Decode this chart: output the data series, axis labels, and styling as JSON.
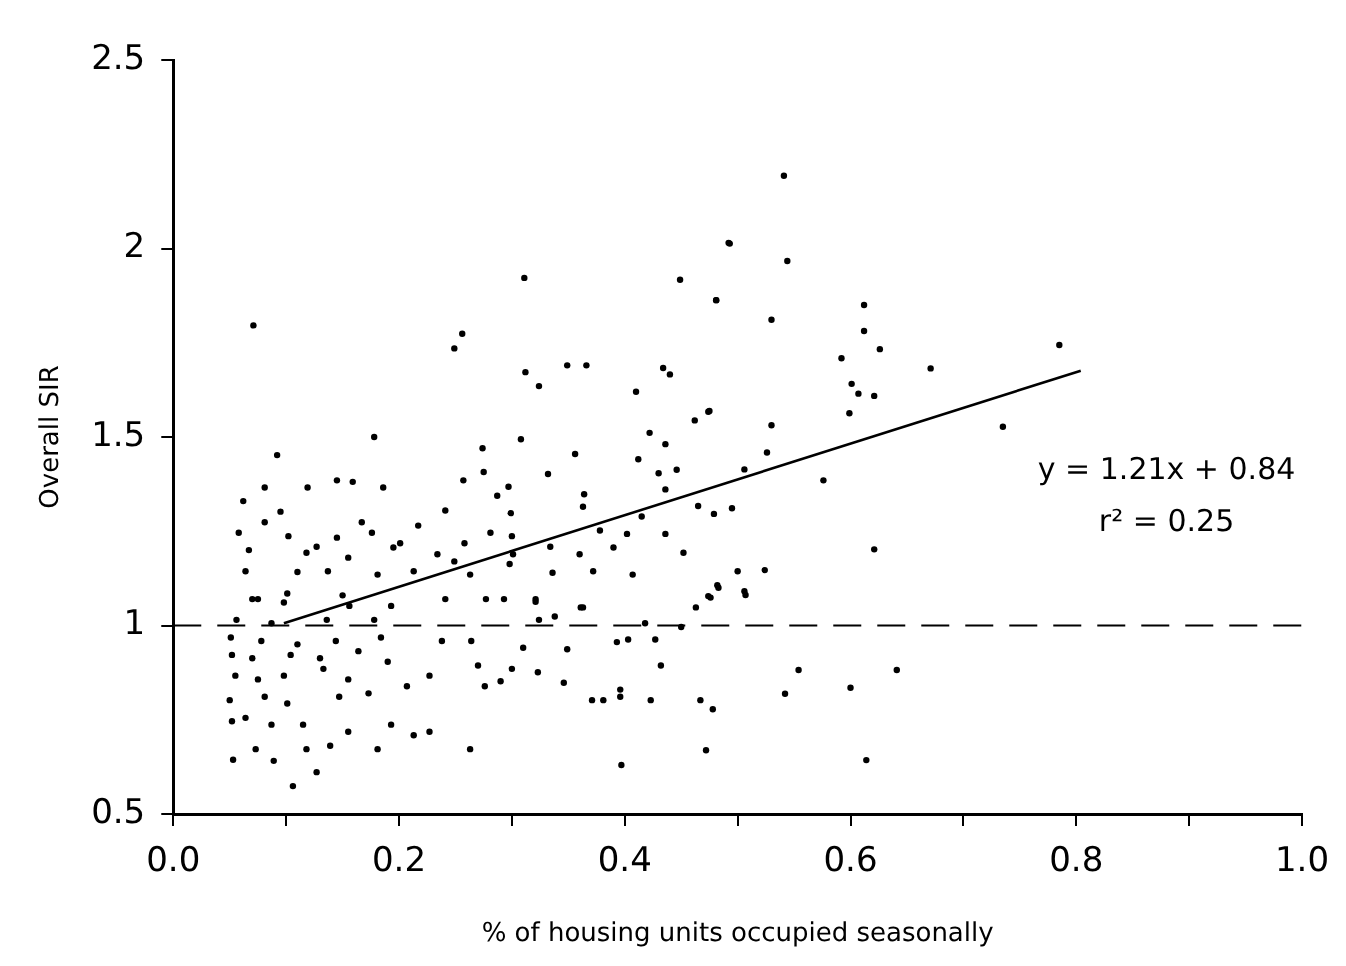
{
  "chart_data": {
    "type": "scatter",
    "xlabel": "% of housing units occupied seasonally",
    "ylabel": "Overall SIR",
    "xlim": [
      0,
      1
    ],
    "ylim": [
      0.5,
      2.5
    ],
    "xticks": [
      {
        "value": 0,
        "label": "0.0"
      },
      {
        "value": 0.1,
        "label": null
      },
      {
        "value": 0.2,
        "label": "0.2"
      },
      {
        "value": 0.3,
        "label": null
      },
      {
        "value": 0.4,
        "label": "0.4"
      },
      {
        "value": 0.5,
        "label": null
      },
      {
        "value": 0.6,
        "label": "0.6"
      },
      {
        "value": 0.7,
        "label": null
      },
      {
        "value": 0.8,
        "label": "0.8"
      },
      {
        "value": 0.9,
        "label": null
      },
      {
        "value": 1,
        "label": "1.0"
      }
    ],
    "yticks": [
      0.5,
      1,
      1.5,
      2,
      2.5
    ],
    "grid": false,
    "legend": false,
    "marker": "circle",
    "series": [
      {
        "type": "scatter",
        "color": "#000000",
        "x": [
          0.071,
          0.311,
          0.249,
          0.256,
          0.449,
          0.481,
          0.492,
          0.312,
          0.324,
          0.349,
          0.366,
          0.41,
          0.434,
          0.44,
          0.178,
          0.092,
          0.274,
          0.308,
          0.356,
          0.422,
          0.436,
          0.462,
          0.474,
          0.145,
          0.159,
          0.186,
          0.081,
          0.119,
          0.257,
          0.275,
          0.332,
          0.412,
          0.43,
          0.446,
          0.287,
          0.297,
          0.364,
          0.436,
          0.062,
          0.095,
          0.167,
          0.241,
          0.299,
          0.363,
          0.415,
          0.465,
          0.058,
          0.081,
          0.102,
          0.127,
          0.145,
          0.176,
          0.201,
          0.217,
          0.258,
          0.281,
          0.3,
          0.334,
          0.378,
          0.402,
          0.436,
          0.067,
          0.118,
          0.155,
          0.195,
          0.234,
          0.249,
          0.301,
          0.36,
          0.39,
          0.452,
          0.064,
          0.11,
          0.137,
          0.181,
          0.213,
          0.263,
          0.298,
          0.336,
          0.372,
          0.407,
          0.482,
          0.075,
          0.101,
          0.15,
          0.193,
          0.241,
          0.277,
          0.321,
          0.361,
          0.474,
          0.541,
          0.493,
          0.544,
          0.481,
          0.53,
          0.612,
          0.612,
          0.626,
          0.592,
          0.785,
          0.671,
          0.601,
          0.607,
          0.621,
          0.475,
          0.599,
          0.53,
          0.735,
          0.526,
          0.506,
          0.576,
          0.479,
          0.495,
          0.621,
          0.5,
          0.524,
          0.483,
          0.506,
          0.053,
          0.073,
          0.089,
          0.106,
          0.127,
          0.118,
          0.139,
          0.155,
          0.181,
          0.213,
          0.227,
          0.263,
          0.052,
          0.064,
          0.087,
          0.115,
          0.193,
          0.05,
          0.081,
          0.101,
          0.147,
          0.173,
          0.207,
          0.276,
          0.055,
          0.075,
          0.098,
          0.133,
          0.155,
          0.227,
          0.27,
          0.052,
          0.07,
          0.104,
          0.13,
          0.164,
          0.19,
          0.238,
          0.051,
          0.078,
          0.11,
          0.144,
          0.184,
          0.264,
          0.056,
          0.087,
          0.136,
          0.178,
          0.07,
          0.098,
          0.156,
          0.397,
          0.472,
          0.614,
          0.542,
          0.554,
          0.6,
          0.641,
          0.371,
          0.381,
          0.396,
          0.423,
          0.467,
          0.478,
          0.29,
          0.3,
          0.323,
          0.346,
          0.349,
          0.396,
          0.432,
          0.31,
          0.393,
          0.427,
          0.403,
          0.324,
          0.338,
          0.418,
          0.45,
          0.293,
          0.321,
          0.363,
          0.463,
          0.476,
          0.507
        ],
        "values": [
          1.796,
          1.922,
          1.735,
          1.774,
          1.917,
          1.863,
          2.015,
          1.672,
          1.635,
          1.69,
          1.69,
          1.62,
          1.683,
          1.666,
          1.5,
          1.452,
          1.47,
          1.494,
          1.455,
          1.511,
          1.481,
          1.544,
          1.567,
          1.385,
          1.381,
          1.366,
          1.366,
          1.366,
          1.385,
          1.407,
          1.402,
          1.441,
          1.404,
          1.413,
          1.344,
          1.368,
          1.348,
          1.361,
          1.33,
          1.302,
          1.274,
          1.305,
          1.298,
          1.315,
          1.289,
          1.317,
          1.246,
          1.274,
          1.237,
          1.209,
          1.233,
          1.246,
          1.218,
          1.265,
          1.218,
          1.246,
          1.237,
          1.209,
          1.252,
          1.243,
          1.243,
          1.2,
          1.193,
          1.18,
          1.207,
          1.189,
          1.17,
          1.189,
          1.189,
          1.207,
          1.193,
          1.144,
          1.142,
          1.144,
          1.135,
          1.144,
          1.135,
          1.163,
          1.14,
          1.144,
          1.135,
          1.107,
          1.07,
          1.085,
          1.08,
          1.052,
          1.07,
          1.07,
          1.07,
          1.048,
          1.078,
          2.193,
          2.013,
          1.967,
          1.863,
          1.811,
          1.85,
          1.781,
          1.733,
          1.709,
          1.744,
          1.682,
          1.641,
          1.615,
          1.609,
          1.569,
          1.563,
          1.531,
          1.527,
          1.459,
          1.414,
          1.385,
          1.296,
          1.311,
          1.202,
          1.144,
          1.147,
          1.1,
          1.091,
          0.644,
          0.672,
          0.641,
          0.574,
          0.611,
          0.672,
          0.681,
          0.718,
          0.672,
          0.709,
          0.718,
          0.672,
          0.746,
          0.755,
          0.737,
          0.737,
          0.737,
          0.802,
          0.811,
          0.793,
          0.811,
          0.82,
          0.839,
          0.839,
          0.867,
          0.857,
          0.867,
          0.885,
          0.857,
          0.867,
          0.894,
          0.922,
          0.913,
          0.922,
          0.913,
          0.932,
          0.904,
          0.959,
          0.968,
          0.959,
          0.95,
          0.959,
          0.968,
          0.959,
          1.015,
          1.006,
          1.015,
          1.015,
          1.07,
          1.061,
          1.052,
          0.63,
          0.669,
          0.643,
          0.819,
          0.882,
          0.835,
          0.882,
          0.802,
          0.802,
          0.811,
          0.802,
          0.802,
          0.778,
          0.852,
          0.885,
          0.876,
          0.848,
          0.937,
          0.83,
          0.894,
          0.941,
          0.956,
          0.963,
          0.963,
          1.015,
          1.024,
          1.006,
          0.996,
          1.07,
          1.063,
          1.048,
          1.048,
          1.074,
          1.081
        ]
      },
      {
        "type": "line",
        "color": "#000000",
        "marker": "none",
        "x": [
          0.098,
          0.804
        ],
        "values": [
          1.006,
          1.676
        ]
      }
    ],
    "ref_lines": [
      {
        "axis": "y",
        "value": 1,
        "line_style": "dashed",
        "color": "#000000"
      }
    ],
    "annotations": [
      "y = 1.21x + 0.84",
      "r² = 0.25"
    ]
  }
}
